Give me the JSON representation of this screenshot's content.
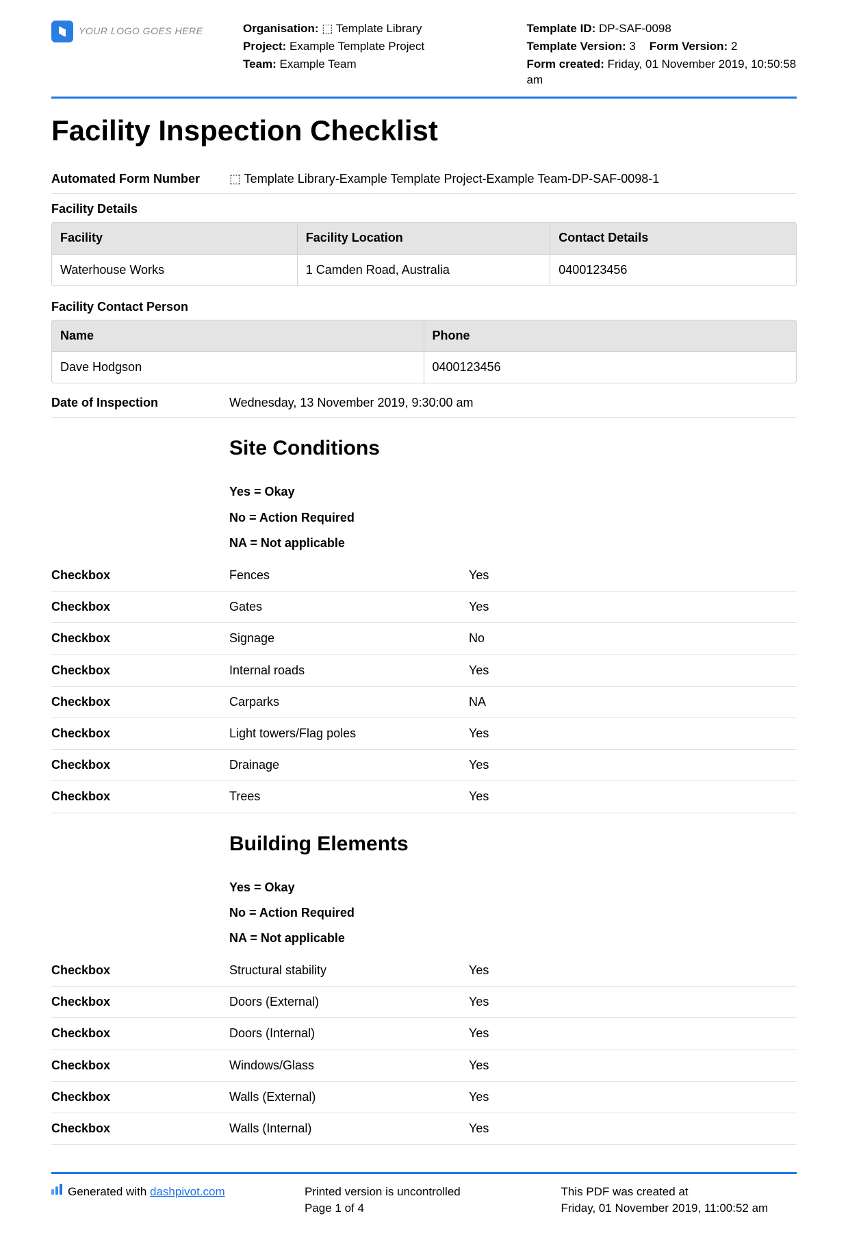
{
  "colors": {
    "accent": "#1e73e8",
    "header_bg": "#e4e4e4",
    "border": "#d0d0d0",
    "row_border": "#e0e0e0",
    "logo_text": "#888888"
  },
  "logo": {
    "text": "YOUR LOGO GOES HERE"
  },
  "meta": {
    "organisation_label": "Organisation:",
    "organisation_value": "⬚ Template Library",
    "project_label": "Project:",
    "project_value": "Example Template Project",
    "team_label": "Team:",
    "team_value": "Example Team",
    "template_id_label": "Template ID:",
    "template_id_value": "DP-SAF-0098",
    "template_version_label": "Template Version:",
    "template_version_value": "3",
    "form_version_label": "Form Version:",
    "form_version_value": "2",
    "form_created_label": "Form created:",
    "form_created_value": "Friday, 01 November 2019, 10:50:58 am"
  },
  "title": "Facility Inspection Checklist",
  "autonum": {
    "label": "Automated Form Number",
    "value": "⬚ Template Library-Example Template Project-Example Team-DP-SAF-0098-1"
  },
  "facility_details": {
    "section_label": "Facility Details",
    "cols": [
      "Facility",
      "Facility Location",
      "Contact Details"
    ],
    "row": [
      "Waterhouse Works",
      "1 Camden Road, Australia",
      "0400123456"
    ]
  },
  "contact_person": {
    "section_label": "Facility Contact Person",
    "cols": [
      "Name",
      "Phone"
    ],
    "row": [
      "Dave Hodgson",
      "0400123456"
    ]
  },
  "inspection_date": {
    "label": "Date of Inspection",
    "value": "Wednesday, 13 November 2019, 9:30:00 am"
  },
  "legend": {
    "yes": "Yes = Okay",
    "no": "No = Action Required",
    "na": "NA = Not applicable"
  },
  "checkbox_label": "Checkbox",
  "site_conditions": {
    "heading": "Site Conditions",
    "rows": [
      {
        "item": "Fences",
        "value": "Yes"
      },
      {
        "item": "Gates",
        "value": "Yes"
      },
      {
        "item": "Signage",
        "value": "No"
      },
      {
        "item": "Internal roads",
        "value": "Yes"
      },
      {
        "item": "Carparks",
        "value": "NA"
      },
      {
        "item": "Light towers/Flag poles",
        "value": "Yes"
      },
      {
        "item": "Drainage",
        "value": "Yes"
      },
      {
        "item": "Trees",
        "value": "Yes"
      }
    ]
  },
  "building_elements": {
    "heading": "Building Elements",
    "rows": [
      {
        "item": "Structural stability",
        "value": "Yes"
      },
      {
        "item": "Doors (External)",
        "value": "Yes"
      },
      {
        "item": "Doors (Internal)",
        "value": "Yes"
      },
      {
        "item": "Windows/Glass",
        "value": "Yes"
      },
      {
        "item": "Walls (External)",
        "value": "Yes"
      },
      {
        "item": "Walls (Internal)",
        "value": "Yes"
      }
    ]
  },
  "footer": {
    "generated_prefix": "Generated with ",
    "generated_link": "dashpivot.com",
    "uncontrolled": "Printed version is uncontrolled",
    "page": "Page 1 of 4",
    "created_label": "This PDF was created at",
    "created_value": "Friday, 01 November 2019, 11:00:52 am"
  }
}
